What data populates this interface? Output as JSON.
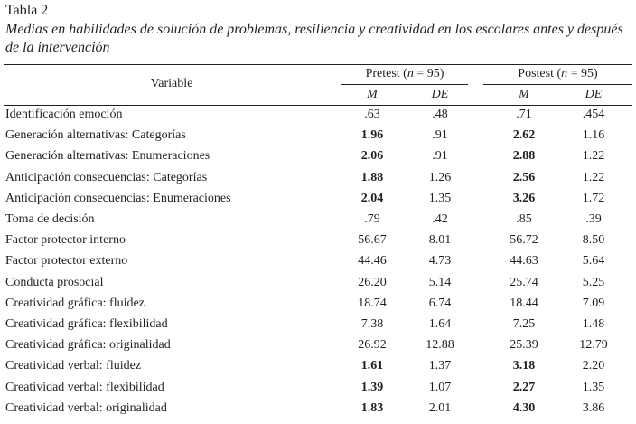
{
  "title": "Tabla 2",
  "caption": "Medias en habilidades de solución de problemas, resiliencia y creatividad en los escolares antes y después de la intervención",
  "header": {
    "variable": "Variable",
    "pretest": "Pretest (n = 95)",
    "postest": "Postest (n = 95)",
    "pre_m": "M",
    "pre_de": "DE",
    "post_m": "M",
    "post_de": "DE"
  },
  "rows": [
    {
      "variable": "Identificación emoción",
      "pre_m": ".63",
      "pre_de": ".48",
      "post_m": ".71",
      "post_de": ".454",
      "bold": false
    },
    {
      "variable": "Generación alternativas: Categorías",
      "pre_m": "1.96",
      "pre_de": ".91",
      "post_m": "2.62",
      "post_de": "1.16",
      "bold": true
    },
    {
      "variable": "Generación alternativas: Enumeraciones",
      "pre_m": "2.06",
      "pre_de": ".91",
      "post_m": "2.88",
      "post_de": "1.22",
      "bold": true
    },
    {
      "variable": "Anticipación consecuencias: Categorías",
      "pre_m": "1.88",
      "pre_de": "1.26",
      "post_m": "2.56",
      "post_de": "1.22",
      "bold": true
    },
    {
      "variable": "Anticipación consecuencias: Enumeraciones",
      "pre_m": "2.04",
      "pre_de": "1.35",
      "post_m": "3.26",
      "post_de": "1.72",
      "bold": true
    },
    {
      "variable": "Toma de decisión",
      "pre_m": ".79",
      "pre_de": ".42",
      "post_m": ".85",
      "post_de": ".39",
      "bold": false
    },
    {
      "variable": "Factor protector interno",
      "pre_m": "56.67",
      "pre_de": "8.01",
      "post_m": "56.72",
      "post_de": "8.50",
      "bold": false
    },
    {
      "variable": "Factor protector externo",
      "pre_m": "44.46",
      "pre_de": "4.73",
      "post_m": "44.63",
      "post_de": "5.64",
      "bold": false
    },
    {
      "variable": "Conducta prosocial",
      "pre_m": "26.20",
      "pre_de": "5.14",
      "post_m": "25.74",
      "post_de": "5.25",
      "bold": false
    },
    {
      "variable": "Creatividad gráfica: fluidez",
      "pre_m": "18.74",
      "pre_de": "6.74",
      "post_m": "18.44",
      "post_de": "7.09",
      "bold": false
    },
    {
      "variable": "Creatividad gráfica: flexibilidad",
      "pre_m": "7.38",
      "pre_de": "1.64",
      "post_m": "7.25",
      "post_de": "1.48",
      "bold": false
    },
    {
      "variable": "Creatividad gráfica: originalidad",
      "pre_m": "26.92",
      "pre_de": "12.88",
      "post_m": "25.39",
      "post_de": "12.79",
      "bold": false
    },
    {
      "variable": "Creatividad verbal: fluidez",
      "pre_m": "1.61",
      "pre_de": "1.37",
      "post_m": "3.18",
      "post_de": "2.20",
      "bold": true
    },
    {
      "variable": "Creatividad verbal: flexibilidad",
      "pre_m": "1.39",
      "pre_de": "1.07",
      "post_m": "2.27",
      "post_de": "1.35",
      "bold": true
    },
    {
      "variable": "Creatividad verbal: originalidad",
      "pre_m": "1.83",
      "pre_de": "2.01",
      "post_m": "4.30",
      "post_de": "3.86",
      "bold": true
    }
  ]
}
